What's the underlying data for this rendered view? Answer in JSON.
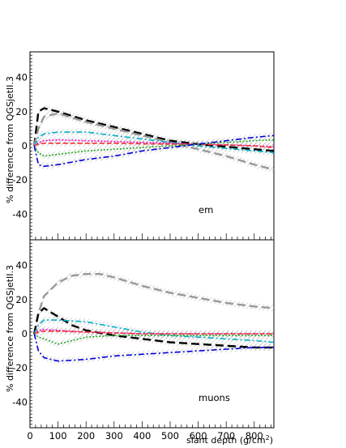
{
  "chart_data": [
    {
      "type": "line",
      "annotation": "em",
      "ylabel": "% difference from QGSjetII.3",
      "xlim": [
        0,
        870
      ],
      "ylim": [
        -55,
        55
      ],
      "yticks": [
        "-40",
        "-20",
        "0",
        "20",
        "40"
      ],
      "ytick_values": [
        -40,
        -20,
        0,
        20,
        40
      ],
      "series": [
        {
          "color": "#000000",
          "dash": "long",
          "x": [
            15,
            30,
            50,
            100,
            200,
            300,
            400,
            500,
            600,
            700,
            800,
            870
          ],
          "y": [
            0,
            20,
            22,
            20,
            15,
            11,
            7,
            3,
            1,
            -0.5,
            -2,
            -3
          ]
        },
        {
          "color": "#999999",
          "dash": "long",
          "x": [
            15,
            30,
            50,
            100,
            200,
            300,
            400,
            500,
            600,
            700,
            800,
            870
          ],
          "y": [
            0,
            10,
            17,
            19,
            14,
            10,
            6,
            2,
            -2,
            -6,
            -11,
            -14
          ]
        },
        {
          "color": "#00b0c8",
          "dash": "dashdot",
          "x": [
            15,
            30,
            50,
            100,
            200,
            300,
            400,
            500,
            600,
            700,
            800,
            870
          ],
          "y": [
            0,
            5,
            7,
            8,
            8,
            6,
            4,
            2,
            0,
            -1.5,
            -3,
            -4
          ]
        },
        {
          "color": "#ff00c0",
          "dash": "dot",
          "x": [
            15,
            30,
            50,
            100,
            200,
            300,
            400,
            500,
            600,
            700,
            800,
            870
          ],
          "y": [
            0,
            2,
            3,
            3.5,
            3,
            2.5,
            2,
            1.5,
            1,
            0.5,
            0,
            -0.5
          ]
        },
        {
          "color": "#ee3333",
          "dash": "dash",
          "x": [
            15,
            30,
            50,
            100,
            200,
            300,
            400,
            500,
            600,
            700,
            800,
            870
          ],
          "y": [
            0,
            1,
            1.5,
            1.5,
            1.5,
            1.5,
            1.2,
            1,
            0.8,
            0.5,
            0,
            -1
          ]
        },
        {
          "color": "#22aa22",
          "dash": "dot",
          "x": [
            15,
            30,
            50,
            100,
            200,
            300,
            400,
            500,
            600,
            700,
            800,
            870
          ],
          "y": [
            0,
            -4,
            -6,
            -5,
            -3,
            -2,
            -1,
            0,
            1,
            2,
            3,
            3.5
          ]
        },
        {
          "color": "#0000dd",
          "dash": "dashdot",
          "x": [
            15,
            30,
            50,
            100,
            200,
            300,
            400,
            500,
            600,
            700,
            800,
            870
          ],
          "y": [
            0,
            -11,
            -12,
            -11,
            -8,
            -6,
            -3,
            -1,
            1,
            3,
            5,
            6
          ]
        }
      ]
    },
    {
      "type": "line",
      "annotation": "muons",
      "ylabel": "% difference from QGSjetII.3",
      "xlabel": "slant depth (g/cm",
      "xlabel_sup": "2",
      "xlabel_close": ")",
      "xlim": [
        0,
        870
      ],
      "ylim": [
        -55,
        55
      ],
      "yticks": [
        "-40",
        "-20",
        "0",
        "20",
        "40"
      ],
      "ytick_values": [
        -40,
        -20,
        0,
        20,
        40
      ],
      "xticks": [
        "0",
        "100",
        "200",
        "300",
        "400",
        "500",
        "600",
        "700",
        "800"
      ],
      "xtick_values": [
        0,
        100,
        200,
        300,
        400,
        500,
        600,
        700,
        800
      ],
      "series": [
        {
          "color": "#999999",
          "dash": "long",
          "x": [
            15,
            30,
            50,
            100,
            150,
            200,
            250,
            300,
            400,
            500,
            600,
            700,
            800,
            870
          ],
          "y": [
            0,
            12,
            22,
            30,
            34,
            35,
            35,
            33,
            28,
            24,
            21,
            18,
            16,
            15
          ]
        },
        {
          "color": "#000000",
          "dash": "long",
          "x": [
            15,
            30,
            50,
            100,
            150,
            200,
            300,
            400,
            500,
            600,
            700,
            800,
            870
          ],
          "y": [
            0,
            12,
            15,
            10,
            5,
            2,
            -1,
            -3,
            -5,
            -6,
            -7,
            -8,
            -8
          ]
        },
        {
          "color": "#00b0c8",
          "dash": "dashdot",
          "x": [
            15,
            30,
            50,
            100,
            200,
            300,
            400,
            500,
            600,
            700,
            800,
            870
          ],
          "y": [
            0,
            5,
            8,
            8,
            7,
            4,
            1,
            -1,
            -2,
            -3,
            -4,
            -5
          ]
        },
        {
          "color": "#ff00c0",
          "dash": "dot",
          "x": [
            15,
            30,
            50,
            100,
            200,
            300,
            400,
            500,
            600,
            700,
            800,
            870
          ],
          "y": [
            0,
            2,
            2.5,
            2,
            1,
            0.5,
            0,
            0,
            0,
            0,
            0,
            0
          ]
        },
        {
          "color": "#ee3333",
          "dash": "dash",
          "x": [
            15,
            30,
            50,
            100,
            200,
            300,
            400,
            500,
            600,
            700,
            800,
            870
          ],
          "y": [
            0,
            1,
            1.5,
            1.5,
            1,
            0.5,
            0,
            0,
            0,
            0,
            0,
            0
          ]
        },
        {
          "color": "#22aa22",
          "dash": "dot",
          "x": [
            15,
            30,
            50,
            100,
            150,
            200,
            300,
            400,
            500,
            600,
            700,
            800,
            870
          ],
          "y": [
            0,
            -2,
            -3,
            -6,
            -4,
            -2,
            -1,
            -1,
            -1,
            -1,
            -1,
            -1,
            -1
          ]
        },
        {
          "color": "#0000dd",
          "dash": "dashdot",
          "x": [
            15,
            30,
            50,
            100,
            200,
            300,
            400,
            500,
            600,
            700,
            800,
            870
          ],
          "y": [
            0,
            -10,
            -14,
            -16,
            -15,
            -13,
            -12,
            -11,
            -10,
            -9,
            -8,
            -8
          ]
        }
      ]
    }
  ]
}
